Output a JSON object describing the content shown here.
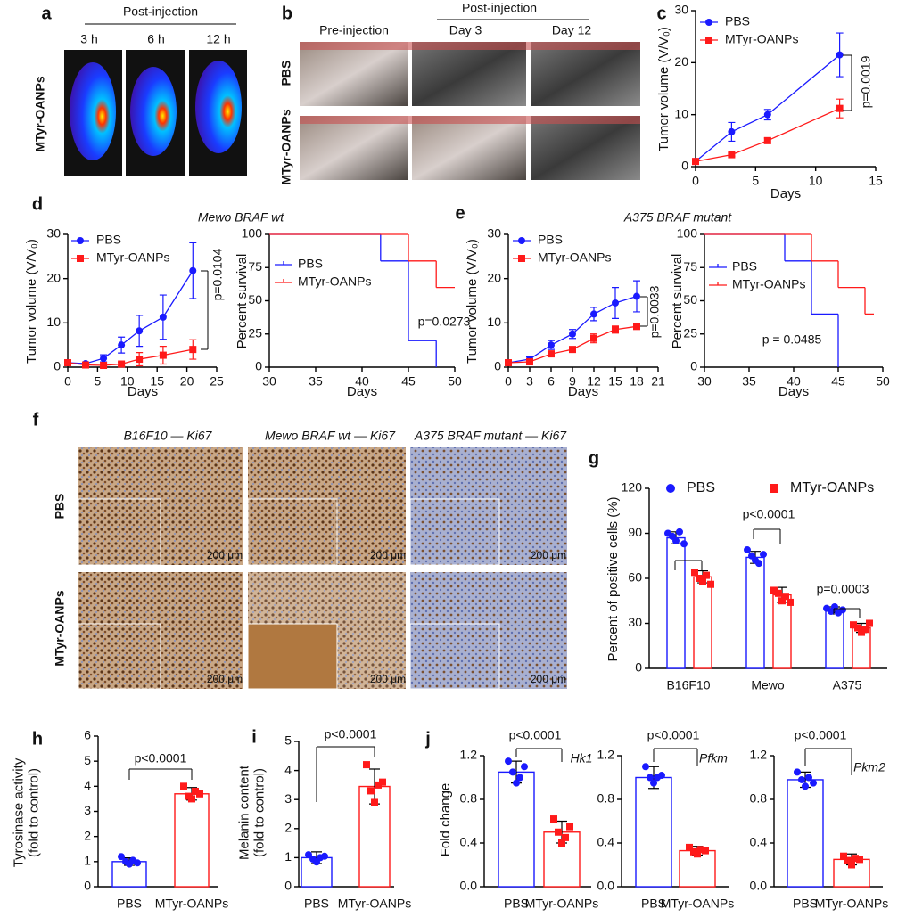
{
  "image_panels": {
    "a": {
      "label": "a",
      "header": "Post-injection",
      "columns": [
        "3 h",
        "6 h",
        "12 h"
      ],
      "rows": [
        "MTyr-OANPs"
      ]
    },
    "b": {
      "label": "b",
      "header": "Post-injection",
      "columns": [
        "Pre-injection",
        "Day 3",
        "Day 12"
      ],
      "rows": [
        "PBS",
        "MTyr-OANPs"
      ]
    },
    "f": {
      "label": "f",
      "columns": [
        "B16F10 — Ki67",
        "Mewo BRAF wt — Ki67",
        "A375 BRAF mutant — Ki67"
      ],
      "rows": [
        "PBS",
        "MTyr-OANPs"
      ],
      "scale_bars": [
        "200 μm",
        "200 μm",
        "200 μm",
        "200 μm",
        "200 μm",
        "200 μm"
      ]
    }
  },
  "chart_data": [
    {
      "panel": "c",
      "type": "line",
      "xlabel": "Days",
      "ylabel": "Tumor volume (V/V₀)",
      "xlim": [
        0,
        15
      ],
      "xticks": [
        0,
        5,
        10,
        15
      ],
      "ylim": [
        0,
        30
      ],
      "yticks": [
        0,
        10,
        20,
        30
      ],
      "series": [
        {
          "name": "PBS",
          "color": "#1a1aff",
          "marker": "circle",
          "x": [
            0,
            3,
            6,
            12
          ],
          "values": [
            1,
            6.7,
            10,
            21.5
          ],
          "errors": [
            0.2,
            1.8,
            1.0,
            4.2
          ]
        },
        {
          "name": "MTyr-OANPs",
          "color": "#ff1a1a",
          "marker": "square",
          "x": [
            0,
            3,
            6,
            12
          ],
          "values": [
            1,
            2.3,
            5,
            11.2
          ],
          "errors": [
            0.2,
            0.3,
            0.5,
            1.8
          ]
        }
      ],
      "annotations": [
        "p=0.0019"
      ]
    },
    {
      "panel": "d",
      "type": "line",
      "title": "Mewo BRAF wt",
      "xlabel": "Days",
      "ylabel": "Tumor volume (V/V₀)",
      "xlim": [
        0,
        25
      ],
      "xticks": [
        0,
        5,
        10,
        15,
        20,
        25
      ],
      "ylim": [
        0,
        30
      ],
      "yticks": [
        0,
        10,
        20,
        30
      ],
      "series": [
        {
          "name": "PBS",
          "color": "#1a1aff",
          "marker": "circle",
          "x": [
            0,
            3,
            6,
            9,
            12,
            16,
            21
          ],
          "values": [
            1,
            0.8,
            2,
            5,
            8.2,
            11.3,
            21.8
          ],
          "errors": [
            0.3,
            0.3,
            0.8,
            1.8,
            3.5,
            5,
            6.3
          ]
        },
        {
          "name": "MTyr-OANPs",
          "color": "#ff1a1a",
          "marker": "square",
          "x": [
            0,
            3,
            6,
            9,
            12,
            16,
            21
          ],
          "values": [
            1,
            0.5,
            0.4,
            0.7,
            1.8,
            2.7,
            4
          ],
          "errors": [
            0.2,
            0.2,
            0.3,
            0.4,
            1.5,
            2,
            2.2
          ]
        }
      ],
      "annotations": [
        "p=0.0104"
      ]
    },
    {
      "type": "step",
      "xlabel": "Days",
      "ylabel": "Percent survival",
      "xlim": [
        30,
        50
      ],
      "xticks": [
        30,
        35,
        40,
        45,
        50
      ],
      "ylim": [
        0,
        100
      ],
      "yticks": [
        0,
        25,
        50,
        75,
        100
      ],
      "series": [
        {
          "name": "PBS",
          "color": "#1a1aff",
          "x": [
            30,
            42,
            45,
            48
          ],
          "values": [
            100,
            80,
            20,
            0
          ]
        },
        {
          "name": "MTyr-OANPs",
          "color": "#ff1a1a",
          "x": [
            30,
            45,
            48,
            50
          ],
          "values": [
            100,
            80,
            60,
            60
          ]
        }
      ],
      "annotations": [
        "p=0.0273"
      ]
    },
    {
      "panel": "e",
      "type": "line",
      "title": "A375 BRAF mutant",
      "xlabel": "Days",
      "ylabel": "Tumor volume (V/V₀)",
      "xlim": [
        0,
        21
      ],
      "xticks": [
        0,
        3,
        6,
        9,
        12,
        15,
        18,
        21
      ],
      "ylim": [
        0,
        30
      ],
      "yticks": [
        0,
        10,
        20,
        30
      ],
      "series": [
        {
          "name": "PBS",
          "color": "#1a1aff",
          "marker": "circle",
          "x": [
            0,
            3,
            6,
            9,
            12,
            15,
            18
          ],
          "values": [
            1,
            1.8,
            5,
            7.5,
            12,
            14.5,
            16
          ],
          "errors": [
            0.3,
            0.5,
            1,
            1,
            1.5,
            3.5,
            3.5
          ]
        },
        {
          "name": "MTyr-OANPs",
          "color": "#ff1a1a",
          "marker": "square",
          "x": [
            0,
            3,
            6,
            9,
            12,
            15,
            18
          ],
          "values": [
            1,
            1.2,
            3,
            4,
            6.5,
            8.5,
            9.2
          ],
          "errors": [
            0.2,
            0.3,
            0.5,
            0.5,
            1,
            0.8,
            0.5
          ]
        }
      ],
      "annotations": [
        "p=0.0033"
      ]
    },
    {
      "type": "step",
      "xlabel": "Days",
      "ylabel": "Percent survival",
      "xlim": [
        30,
        50
      ],
      "xticks": [
        30,
        35,
        40,
        45,
        50
      ],
      "ylim": [
        0,
        100
      ],
      "yticks": [
        0,
        25,
        50,
        75,
        100
      ],
      "series": [
        {
          "name": "PBS",
          "color": "#1a1aff",
          "x": [
            30,
            39,
            42,
            45
          ],
          "values": [
            100,
            80,
            40,
            0
          ]
        },
        {
          "name": "MTyr-OANPs",
          "color": "#ff1a1a",
          "x": [
            30,
            42,
            45,
            48,
            49
          ],
          "values": [
            100,
            80,
            60,
            40,
            40
          ]
        }
      ],
      "annotations": [
        "p = 0.0485"
      ]
    },
    {
      "panel": "g",
      "type": "bar",
      "ylabel": "Percent of positive cells  (%)",
      "ylim": [
        0,
        120
      ],
      "yticks": [
        0,
        30,
        60,
        90,
        120
      ],
      "categories": [
        "B16F10",
        "Mewo",
        "A375"
      ],
      "series": [
        {
          "name": "PBS",
          "color": "#1a1aff",
          "marker": "circle",
          "values": [
            87,
            74,
            39
          ],
          "errors": [
            4,
            4,
            2
          ],
          "points": [
            [
              90,
              88,
              85,
              91,
              83
            ],
            [
              79,
              75,
              72,
              70,
              76
            ],
            [
              40,
              38,
              41,
              37,
              39
            ]
          ]
        },
        {
          "name": "MTyr-OANPs",
          "color": "#ff1a1a",
          "marker": "square",
          "values": [
            61,
            49,
            27
          ],
          "errors": [
            4,
            5,
            3
          ],
          "points": [
            [
              64,
              60,
              58,
              62,
              56
            ],
            [
              52,
              50,
              45,
              48,
              44
            ],
            [
              29,
              27,
              24,
              26,
              30
            ]
          ]
        }
      ],
      "annotations": [
        "p<0.0001",
        "p=0.0003"
      ]
    },
    {
      "panel": "h",
      "type": "bar",
      "ylabel": [
        "Tyrosinase activity",
        "(fold to control)"
      ],
      "ylim": [
        0,
        6
      ],
      "yticks": [
        0,
        1,
        2,
        3,
        4,
        5,
        6
      ],
      "categories": [
        "PBS",
        "MTyr-OANPs"
      ],
      "colors": [
        "#1a1aff",
        "#ff1a1a"
      ],
      "markers": [
        "circle",
        "square"
      ],
      "values": [
        1.0,
        3.7
      ],
      "errors": [
        0.15,
        0.25
      ],
      "points": [
        [
          1.2,
          1.0,
          0.9,
          1.05,
          0.95
        ],
        [
          4.0,
          3.6,
          3.5,
          3.8,
          3.7
        ]
      ],
      "annotations": [
        "p<0.0001"
      ]
    },
    {
      "panel": "i",
      "type": "bar",
      "ylabel": [
        "Melanin content",
        "(fold to control)"
      ],
      "ylim": [
        0,
        5
      ],
      "yticks": [
        0,
        1,
        2,
        3,
        4,
        5
      ],
      "categories": [
        "PBS",
        "MTyr-OANPs"
      ],
      "colors": [
        "#1a1aff",
        "#ff1a1a"
      ],
      "markers": [
        "circle",
        "square"
      ],
      "values": [
        1.0,
        3.45
      ],
      "errors": [
        0.2,
        0.6
      ],
      "points": [
        [
          1.1,
          0.95,
          0.85,
          1.0,
          1.05
        ],
        [
          4.2,
          3.3,
          2.9,
          3.5,
          3.6
        ]
      ],
      "annotations": [
        "p<0.0001"
      ]
    },
    {
      "panel": "j",
      "type": "bar",
      "ylabel": "Fold change",
      "ylim": [
        0,
        1.2
      ],
      "yticks": [
        {
          "value": 0,
          "label": "0.0"
        },
        0.4,
        0.8,
        1.2
      ],
      "categories": [
        "PBS",
        "MTyr-OANPs"
      ],
      "colors": [
        "#1a1aff",
        "#ff1a1a"
      ],
      "markers": [
        "circle",
        "square"
      ],
      "values": [
        1.05,
        0.5
      ],
      "errors": [
        0.1,
        0.1
      ],
      "points": [
        [
          1.15,
          1.05,
          0.95,
          1.0,
          1.1
        ],
        [
          0.62,
          0.5,
          0.4,
          0.45,
          0.55
        ]
      ],
      "annotations": [
        "p<0.0001",
        "Hk1"
      ]
    },
    {
      "type": "bar",
      "ylim": [
        0,
        1.2
      ],
      "yticks": [
        {
          "value": 0,
          "label": "0.0"
        },
        0.4,
        0.8,
        1.2
      ],
      "categories": [
        "PBS",
        "MTyr-OANPs"
      ],
      "colors": [
        "#1a1aff",
        "#ff1a1a"
      ],
      "markers": [
        "circle",
        "square"
      ],
      "values": [
        1.0,
        0.33
      ],
      "errors": [
        0.1,
        0.04
      ],
      "points": [
        [
          1.1,
          1.0,
          0.95,
          1.0,
          1.02
        ],
        [
          0.36,
          0.32,
          0.3,
          0.34,
          0.33
        ]
      ],
      "annotations": [
        "p<0.0001",
        "Pfkm"
      ]
    },
    {
      "type": "bar",
      "ylim": [
        0,
        1.2
      ],
      "yticks": [
        {
          "value": 0,
          "label": "0.0"
        },
        0.4,
        0.8,
        1.2
      ],
      "categories": [
        "PBS",
        "MTyr-OANPs"
      ],
      "colors": [
        "#1a1aff",
        "#ff1a1a"
      ],
      "markers": [
        "circle",
        "square"
      ],
      "values": [
        0.98,
        0.25
      ],
      "errors": [
        0.07,
        0.05
      ],
      "points": [
        [
          1.05,
          0.98,
          0.92,
          1.0,
          0.95
        ],
        [
          0.28,
          0.24,
          0.2,
          0.26,
          0.25
        ]
      ],
      "annotations": [
        "p<0.0001",
        "Pkm2"
      ]
    }
  ]
}
